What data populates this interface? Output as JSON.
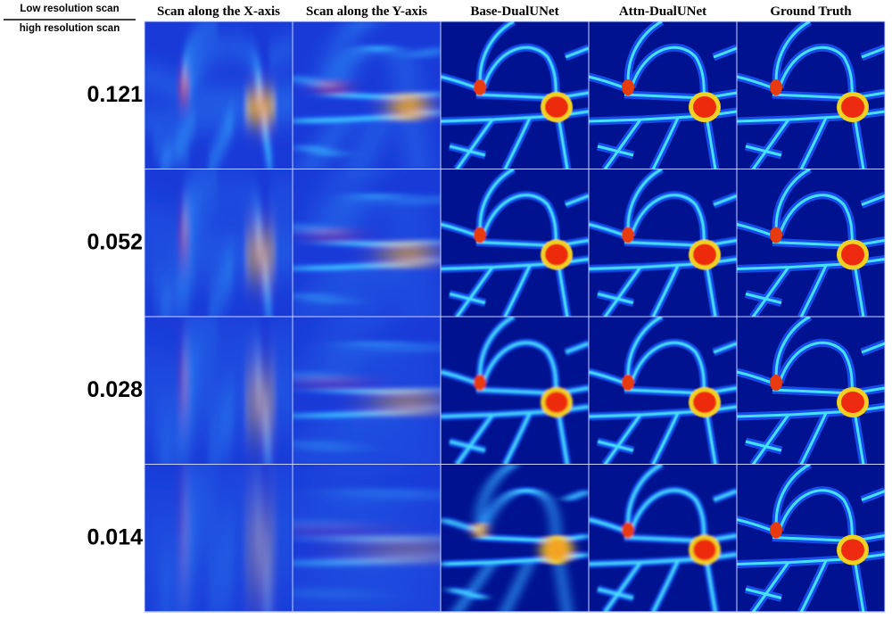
{
  "ratio_label": {
    "numerator": "Low resolution scan",
    "denominator": "high resolution scan"
  },
  "columns": [
    "Scan along the X-axis",
    "Scan along the Y-axis",
    "Base-DualUNet",
    "Attn-DualUNet",
    "Ground Truth"
  ],
  "rows": [
    "0.121",
    "0.052",
    "0.028",
    "0.014"
  ]
}
